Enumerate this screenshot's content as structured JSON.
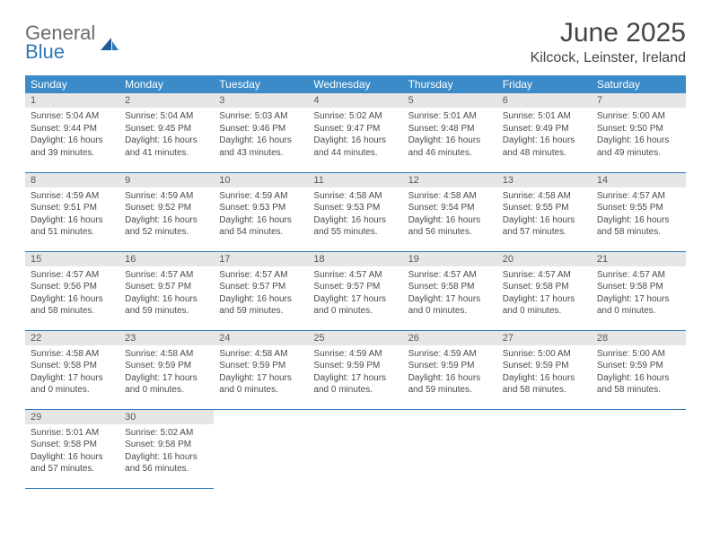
{
  "logo": {
    "word1": "General",
    "word2": "Blue",
    "gray": "#6b6b6b",
    "blue": "#2f78b8",
    "mark_fill": "#1f5f99"
  },
  "title": "June 2025",
  "location": "Kilcock, Leinster, Ireland",
  "weekday_bg": "#3b8bc9",
  "weekday_fg": "#ffffff",
  "daynum_bg": "#e6e6e6",
  "border_color": "#2f78b8",
  "weekdays": [
    "Sunday",
    "Monday",
    "Tuesday",
    "Wednesday",
    "Thursday",
    "Friday",
    "Saturday"
  ],
  "days": [
    {
      "n": "1",
      "sr": "5:04 AM",
      "ss": "9:44 PM",
      "dl": "16 hours and 39 minutes."
    },
    {
      "n": "2",
      "sr": "5:04 AM",
      "ss": "9:45 PM",
      "dl": "16 hours and 41 minutes."
    },
    {
      "n": "3",
      "sr": "5:03 AM",
      "ss": "9:46 PM",
      "dl": "16 hours and 43 minutes."
    },
    {
      "n": "4",
      "sr": "5:02 AM",
      "ss": "9:47 PM",
      "dl": "16 hours and 44 minutes."
    },
    {
      "n": "5",
      "sr": "5:01 AM",
      "ss": "9:48 PM",
      "dl": "16 hours and 46 minutes."
    },
    {
      "n": "6",
      "sr": "5:01 AM",
      "ss": "9:49 PM",
      "dl": "16 hours and 48 minutes."
    },
    {
      "n": "7",
      "sr": "5:00 AM",
      "ss": "9:50 PM",
      "dl": "16 hours and 49 minutes."
    },
    {
      "n": "8",
      "sr": "4:59 AM",
      "ss": "9:51 PM",
      "dl": "16 hours and 51 minutes."
    },
    {
      "n": "9",
      "sr": "4:59 AM",
      "ss": "9:52 PM",
      "dl": "16 hours and 52 minutes."
    },
    {
      "n": "10",
      "sr": "4:59 AM",
      "ss": "9:53 PM",
      "dl": "16 hours and 54 minutes."
    },
    {
      "n": "11",
      "sr": "4:58 AM",
      "ss": "9:53 PM",
      "dl": "16 hours and 55 minutes."
    },
    {
      "n": "12",
      "sr": "4:58 AM",
      "ss": "9:54 PM",
      "dl": "16 hours and 56 minutes."
    },
    {
      "n": "13",
      "sr": "4:58 AM",
      "ss": "9:55 PM",
      "dl": "16 hours and 57 minutes."
    },
    {
      "n": "14",
      "sr": "4:57 AM",
      "ss": "9:55 PM",
      "dl": "16 hours and 58 minutes."
    },
    {
      "n": "15",
      "sr": "4:57 AM",
      "ss": "9:56 PM",
      "dl": "16 hours and 58 minutes."
    },
    {
      "n": "16",
      "sr": "4:57 AM",
      "ss": "9:57 PM",
      "dl": "16 hours and 59 minutes."
    },
    {
      "n": "17",
      "sr": "4:57 AM",
      "ss": "9:57 PM",
      "dl": "16 hours and 59 minutes."
    },
    {
      "n": "18",
      "sr": "4:57 AM",
      "ss": "9:57 PM",
      "dl": "17 hours and 0 minutes."
    },
    {
      "n": "19",
      "sr": "4:57 AM",
      "ss": "9:58 PM",
      "dl": "17 hours and 0 minutes."
    },
    {
      "n": "20",
      "sr": "4:57 AM",
      "ss": "9:58 PM",
      "dl": "17 hours and 0 minutes."
    },
    {
      "n": "21",
      "sr": "4:57 AM",
      "ss": "9:58 PM",
      "dl": "17 hours and 0 minutes."
    },
    {
      "n": "22",
      "sr": "4:58 AM",
      "ss": "9:58 PM",
      "dl": "17 hours and 0 minutes."
    },
    {
      "n": "23",
      "sr": "4:58 AM",
      "ss": "9:59 PM",
      "dl": "17 hours and 0 minutes."
    },
    {
      "n": "24",
      "sr": "4:58 AM",
      "ss": "9:59 PM",
      "dl": "17 hours and 0 minutes."
    },
    {
      "n": "25",
      "sr": "4:59 AM",
      "ss": "9:59 PM",
      "dl": "17 hours and 0 minutes."
    },
    {
      "n": "26",
      "sr": "4:59 AM",
      "ss": "9:59 PM",
      "dl": "16 hours and 59 minutes."
    },
    {
      "n": "27",
      "sr": "5:00 AM",
      "ss": "9:59 PM",
      "dl": "16 hours and 58 minutes."
    },
    {
      "n": "28",
      "sr": "5:00 AM",
      "ss": "9:59 PM",
      "dl": "16 hours and 58 minutes."
    },
    {
      "n": "29",
      "sr": "5:01 AM",
      "ss": "9:58 PM",
      "dl": "16 hours and 57 minutes."
    },
    {
      "n": "30",
      "sr": "5:02 AM",
      "ss": "9:58 PM",
      "dl": "16 hours and 56 minutes."
    }
  ],
  "labels": {
    "sunrise": "Sunrise: ",
    "sunset": "Sunset: ",
    "daylight": "Daylight: "
  }
}
